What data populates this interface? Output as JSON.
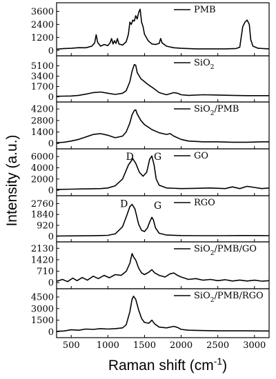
{
  "chart_data": {
    "type": "line",
    "xlabel_main": "Raman shift (cm",
    "xlabel_sup": "-1",
    "xlabel_close": ")",
    "ylabel": "Intensity (a.u.)",
    "xlim": [
      300,
      3200
    ],
    "xticks": [
      500,
      1000,
      1500,
      2000,
      2500,
      3000
    ],
    "panels": [
      {
        "name": "PMB",
        "legend_parts": [
          {
            "t": "PMB"
          }
        ],
        "ylim": [
          -300,
          4200
        ],
        "yticks": [
          0,
          1200,
          2400,
          3600
        ],
        "annotations": [],
        "points": [
          [
            300,
            120
          ],
          [
            400,
            180
          ],
          [
            500,
            200
          ],
          [
            600,
            260
          ],
          [
            700,
            250
          ],
          [
            780,
            400
          ],
          [
            820,
            700
          ],
          [
            840,
            1450
          ],
          [
            860,
            750
          ],
          [
            900,
            400
          ],
          [
            950,
            550
          ],
          [
            1000,
            450
          ],
          [
            1030,
            700
          ],
          [
            1050,
            1100
          ],
          [
            1070,
            600
          ],
          [
            1090,
            900
          ],
          [
            1110,
            650
          ],
          [
            1130,
            1100
          ],
          [
            1150,
            600
          ],
          [
            1200,
            500
          ],
          [
            1250,
            800
          ],
          [
            1280,
            1500
          ],
          [
            1300,
            2600
          ],
          [
            1320,
            2400
          ],
          [
            1340,
            2800
          ],
          [
            1360,
            2700
          ],
          [
            1380,
            3200
          ],
          [
            1400,
            2900
          ],
          [
            1420,
            3500
          ],
          [
            1440,
            3800
          ],
          [
            1460,
            2600
          ],
          [
            1480,
            2200
          ],
          [
            1500,
            1500
          ],
          [
            1550,
            900
          ],
          [
            1600,
            600
          ],
          [
            1650,
            550
          ],
          [
            1700,
            650
          ],
          [
            1720,
            1100
          ],
          [
            1740,
            700
          ],
          [
            1800,
            400
          ],
          [
            1900,
            250
          ],
          [
            2000,
            200
          ],
          [
            2200,
            150
          ],
          [
            2400,
            150
          ],
          [
            2600,
            150
          ],
          [
            2750,
            180
          ],
          [
            2800,
            300
          ],
          [
            2840,
            2200
          ],
          [
            2870,
            2600
          ],
          [
            2900,
            2800
          ],
          [
            2930,
            2400
          ],
          [
            2950,
            1000
          ],
          [
            2980,
            400
          ],
          [
            3050,
            200
          ],
          [
            3200,
            150
          ]
        ]
      },
      {
        "name": "SiO2",
        "legend_parts": [
          {
            "t": "SiO"
          },
          {
            "t": "2",
            "sub": true
          }
        ],
        "ylim": [
          -500,
          6400
        ],
        "yticks": [
          0,
          1700,
          3400,
          5100
        ],
        "annotations": [],
        "points": [
          [
            300,
            100
          ],
          [
            400,
            120
          ],
          [
            500,
            150
          ],
          [
            600,
            250
          ],
          [
            700,
            450
          ],
          [
            800,
            700
          ],
          [
            900,
            800
          ],
          [
            1000,
            600
          ],
          [
            1100,
            400
          ],
          [
            1200,
            600
          ],
          [
            1250,
            1000
          ],
          [
            1300,
            2500
          ],
          [
            1330,
            4200
          ],
          [
            1360,
            5300
          ],
          [
            1380,
            5200
          ],
          [
            1400,
            4000
          ],
          [
            1450,
            3000
          ],
          [
            1500,
            2500
          ],
          [
            1550,
            2000
          ],
          [
            1600,
            1600
          ],
          [
            1700,
            700
          ],
          [
            1800,
            350
          ],
          [
            1900,
            700
          ],
          [
            1950,
            600
          ],
          [
            2000,
            350
          ],
          [
            2100,
            250
          ],
          [
            2300,
            350
          ],
          [
            2500,
            300
          ],
          [
            2700,
            250
          ],
          [
            2900,
            200
          ],
          [
            3100,
            200
          ],
          [
            3200,
            200
          ]
        ]
      },
      {
        "name": "SiO2/PMB",
        "legend_parts": [
          {
            "t": "SiO"
          },
          {
            "t": "2",
            "sub": true
          },
          {
            "t": "/PMB"
          }
        ],
        "ylim": [
          -400,
          4800
        ],
        "yticks": [
          0,
          1400,
          2800,
          4200
        ],
        "annotations": [],
        "points": [
          [
            300,
            100
          ],
          [
            400,
            150
          ],
          [
            500,
            300
          ],
          [
            600,
            500
          ],
          [
            700,
            800
          ],
          [
            800,
            1100
          ],
          [
            900,
            1200
          ],
          [
            1000,
            1000
          ],
          [
            1100,
            700
          ],
          [
            1200,
            900
          ],
          [
            1250,
            1400
          ],
          [
            1300,
            2500
          ],
          [
            1330,
            3500
          ],
          [
            1360,
            4000
          ],
          [
            1380,
            4100
          ],
          [
            1400,
            3600
          ],
          [
            1450,
            2800
          ],
          [
            1500,
            2300
          ],
          [
            1600,
            1700
          ],
          [
            1700,
            1300
          ],
          [
            1800,
            1100
          ],
          [
            1850,
            1200
          ],
          [
            1900,
            900
          ],
          [
            2000,
            500
          ],
          [
            2100,
            300
          ],
          [
            2300,
            200
          ],
          [
            2500,
            200
          ],
          [
            2700,
            150
          ],
          [
            2900,
            150
          ],
          [
            3100,
            200
          ],
          [
            3200,
            200
          ]
        ]
      },
      {
        "name": "GO",
        "legend_parts": [
          {
            "t": "GO"
          }
        ],
        "ylim": [
          -600,
          7000
        ],
        "yticks": [
          0,
          2000,
          4000,
          6000
        ],
        "annotations": [
          {
            "label": "D",
            "x": 1300,
            "y": 6000
          },
          {
            "label": "G",
            "x": 1680,
            "y": 6000
          }
        ],
        "points": [
          [
            300,
            150
          ],
          [
            500,
            200
          ],
          [
            700,
            250
          ],
          [
            900,
            300
          ],
          [
            1000,
            400
          ],
          [
            1100,
            800
          ],
          [
            1200,
            2000
          ],
          [
            1280,
            4500
          ],
          [
            1340,
            5600
          ],
          [
            1380,
            4800
          ],
          [
            1430,
            3200
          ],
          [
            1480,
            2500
          ],
          [
            1530,
            3200
          ],
          [
            1570,
            5500
          ],
          [
            1600,
            6100
          ],
          [
            1630,
            4500
          ],
          [
            1660,
            2000
          ],
          [
            1700,
            900
          ],
          [
            1800,
            400
          ],
          [
            2000,
            300
          ],
          [
            2200,
            350
          ],
          [
            2400,
            400
          ],
          [
            2600,
            300
          ],
          [
            2700,
            600
          ],
          [
            2800,
            300
          ],
          [
            2900,
            700
          ],
          [
            3000,
            500
          ],
          [
            3100,
            300
          ],
          [
            3200,
            400
          ]
        ]
      },
      {
        "name": "RGO",
        "legend_parts": [
          {
            "t": "RGO"
          }
        ],
        "ylim": [
          -300,
          3250
        ],
        "yticks": [
          0,
          920,
          1840,
          2760
        ],
        "annotations": [
          {
            "label": "D",
            "x": 1220,
            "y": 2760
          },
          {
            "label": "G",
            "x": 1680,
            "y": 2620
          }
        ],
        "points": [
          [
            300,
            20
          ],
          [
            500,
            30
          ],
          [
            700,
            40
          ],
          [
            900,
            60
          ],
          [
            1000,
            80
          ],
          [
            1100,
            200
          ],
          [
            1200,
            800
          ],
          [
            1260,
            1800
          ],
          [
            1300,
            2500
          ],
          [
            1330,
            2700
          ],
          [
            1370,
            2300
          ],
          [
            1420,
            1000
          ],
          [
            1460,
            500
          ],
          [
            1500,
            400
          ],
          [
            1540,
            700
          ],
          [
            1570,
            1200
          ],
          [
            1600,
            1600
          ],
          [
            1620,
            1400
          ],
          [
            1650,
            700
          ],
          [
            1700,
            250
          ],
          [
            1800,
            100
          ],
          [
            2000,
            60
          ],
          [
            2200,
            50
          ],
          [
            2400,
            50
          ],
          [
            2600,
            50
          ],
          [
            2800,
            60
          ],
          [
            3000,
            60
          ],
          [
            3200,
            50
          ]
        ]
      },
      {
        "name": "SiO2/PMB/GO",
        "legend_parts": [
          {
            "t": "SiO"
          },
          {
            "t": "2",
            "sub": true
          },
          {
            "t": "/PMB/GO"
          }
        ],
        "ylim": [
          -250,
          2400
        ],
        "yticks": [
          0,
          710,
          1420,
          2130
        ],
        "annotations": [],
        "points": [
          [
            300,
            80
          ],
          [
            380,
            200
          ],
          [
            450,
            60
          ],
          [
            520,
            280
          ],
          [
            580,
            120
          ],
          [
            650,
            320
          ],
          [
            720,
            150
          ],
          [
            800,
            400
          ],
          [
            870,
            250
          ],
          [
            950,
            450
          ],
          [
            1020,
            300
          ],
          [
            1100,
            500
          ],
          [
            1180,
            450
          ],
          [
            1250,
            700
          ],
          [
            1300,
            1200
          ],
          [
            1330,
            1800
          ],
          [
            1350,
            1600
          ],
          [
            1380,
            1400
          ],
          [
            1420,
            900
          ],
          [
            1460,
            600
          ],
          [
            1500,
            500
          ],
          [
            1560,
            650
          ],
          [
            1600,
            800
          ],
          [
            1640,
            600
          ],
          [
            1700,
            450
          ],
          [
            1780,
            350
          ],
          [
            1850,
            550
          ],
          [
            1900,
            600
          ],
          [
            1950,
            450
          ],
          [
            2000,
            350
          ],
          [
            2100,
            200
          ],
          [
            2200,
            250
          ],
          [
            2300,
            150
          ],
          [
            2400,
            200
          ],
          [
            2500,
            120
          ],
          [
            2600,
            180
          ],
          [
            2700,
            100
          ],
          [
            2800,
            160
          ],
          [
            2900,
            100
          ],
          [
            3000,
            150
          ],
          [
            3100,
            90
          ],
          [
            3200,
            120
          ]
        ]
      },
      {
        "name": "SiO2/PMB/RGO",
        "legend_parts": [
          {
            "t": "SiO"
          },
          {
            "t": "2",
            "sub": true
          },
          {
            "t": "/PMB/RGO"
          }
        ],
        "ylim": [
          -500,
          5300
        ],
        "yticks": [
          0,
          1500,
          3000,
          4500
        ],
        "annotations": [],
        "points": [
          [
            300,
            50
          ],
          [
            400,
            100
          ],
          [
            500,
            250
          ],
          [
            600,
            200
          ],
          [
            700,
            350
          ],
          [
            800,
            300
          ],
          [
            900,
            400
          ],
          [
            1000,
            350
          ],
          [
            1100,
            400
          ],
          [
            1200,
            500
          ],
          [
            1250,
            900
          ],
          [
            1300,
            2600
          ],
          [
            1330,
            4200
          ],
          [
            1350,
            4600
          ],
          [
            1380,
            4200
          ],
          [
            1420,
            2800
          ],
          [
            1460,
            1700
          ],
          [
            1500,
            1200
          ],
          [
            1560,
            1100
          ],
          [
            1600,
            1500
          ],
          [
            1640,
            1000
          ],
          [
            1700,
            600
          ],
          [
            1800,
            500
          ],
          [
            1900,
            700
          ],
          [
            1950,
            550
          ],
          [
            2000,
            300
          ],
          [
            2100,
            200
          ],
          [
            2300,
            150
          ],
          [
            2500,
            120
          ],
          [
            2700,
            120
          ],
          [
            2900,
            120
          ],
          [
            3100,
            100
          ],
          [
            3200,
            100
          ]
        ]
      }
    ]
  }
}
